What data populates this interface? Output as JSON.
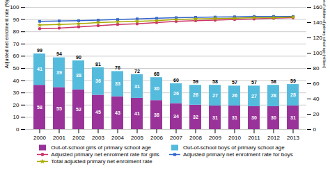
{
  "chart_data": {
    "type": "bar",
    "categories": [
      "2000",
      "2001",
      "2002",
      "2003",
      "2004",
      "2005",
      "2006",
      "2007",
      "2008",
      "2009",
      "2010",
      "2011",
      "2012",
      "2013"
    ],
    "series": [
      {
        "name": "Out-of-school girls of primary school age",
        "type": "bar",
        "axis": "y2",
        "color": "#993399",
        "data_labels": true,
        "values": [
          58,
          55,
          52,
          45,
          43,
          41,
          38,
          34,
          32,
          31,
          31,
          30,
          30,
          31
        ]
      },
      {
        "name": "Out-of-school boys of primary school age",
        "type": "bar",
        "axis": "y2",
        "color": "#55bbdd",
        "data_labels": true,
        "values": [
          41,
          39,
          38,
          36,
          33,
          31,
          30,
          26,
          26,
          27,
          26,
          27,
          28,
          28
        ]
      },
      {
        "name": "Adjusted primary net enrolment rate for girls",
        "type": "line",
        "color": "#cc3366",
        "marker": "circle",
        "values": [
          82.5,
          83.0,
          84.0,
          85.0,
          86.0,
          86.5,
          87.5,
          88.5,
          89.0,
          89.5,
          90.0,
          90.5,
          91.0,
          91.5
        ]
      },
      {
        "name": "Adjusted primary net enrolment rate for boys",
        "type": "line",
        "color": "#3366cc",
        "marker": "square",
        "values": [
          88.5,
          88.8,
          89.0,
          89.5,
          90.0,
          90.5,
          91.0,
          91.5,
          91.8,
          92.0,
          92.2,
          92.5,
          92.5,
          92.5
        ]
      },
      {
        "name": "Total adjusted primary net enrolment rate",
        "type": "line",
        "color": "#aaaa00",
        "marker": "star",
        "values": [
          85.5,
          86.0,
          86.5,
          87.5,
          88.0,
          88.5,
          89.0,
          90.0,
          90.5,
          90.8,
          91.0,
          91.5,
          91.5,
          92.0
        ]
      }
    ],
    "stack_totals": [
      99,
      94,
      90,
      81,
      76,
      72,
      68,
      60,
      59,
      58,
      57,
      57,
      58,
      59
    ],
    "ylabel": "Adjusted net enrolment rate (%)",
    "y2label": "Out-of-school population of children of primary school age (millions)",
    "ylim": [
      0,
      100
    ],
    "yticks": [
      0,
      10,
      20,
      30,
      40,
      50,
      60,
      70,
      80,
      90,
      100
    ],
    "y2lim": [
      0,
      160
    ],
    "y2ticks": [
      0,
      20,
      40,
      60,
      80,
      100,
      120,
      140,
      160
    ],
    "stacked": true,
    "grid": true,
    "legend": "bottom"
  }
}
